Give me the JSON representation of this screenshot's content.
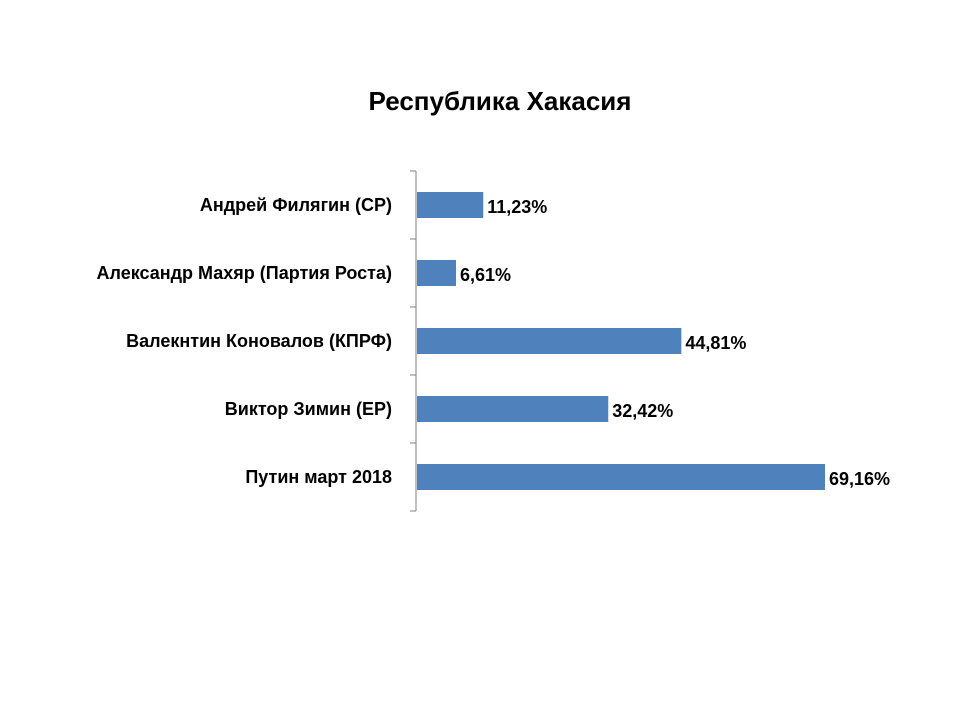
{
  "chart_data": {
    "type": "bar",
    "orientation": "horizontal",
    "title": "Республика Хакасия",
    "xlabel": "",
    "ylabel": "",
    "categories": [
      "Андрей Филягин (СР)",
      "Александр Махяр (Партия Роста)",
      "Валекнтин Коновалов (КПРФ)",
      "Виктор Зимин (ЕР)",
      "Путин март 2018"
    ],
    "values": [
      11.23,
      6.61,
      44.81,
      32.42,
      69.16
    ],
    "data_labels": [
      "11,23%",
      "6,61%",
      "44,81%",
      "32,42%",
      "69,16%"
    ],
    "xlim": [
      0,
      69.16
    ],
    "grid": false,
    "legend": "none",
    "bar_color": "#4f81bd",
    "axis_color": "#808080"
  }
}
